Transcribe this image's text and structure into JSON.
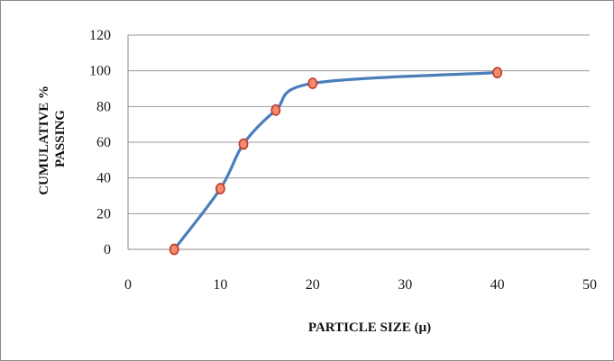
{
  "chart_data": {
    "type": "line",
    "title": "",
    "xlabel": "PARTICLE SIZE (µ)",
    "ylabel_lines": [
      "CUMULATIVE %",
      "PASSING"
    ],
    "xlim": [
      0,
      50
    ],
    "ylim": [
      0,
      120
    ],
    "xticks": [
      0,
      10,
      20,
      30,
      40,
      50
    ],
    "yticks": [
      0,
      20,
      40,
      60,
      80,
      100,
      120
    ],
    "grid": {
      "horizontal": true,
      "vertical": false
    },
    "legend": "none",
    "series": [
      {
        "smooth": true,
        "line_color": "#4a7ebb",
        "marker_fill": "#f28c6c",
        "marker_edge": "#c0392b",
        "points": [
          {
            "x": 5,
            "y": 0
          },
          {
            "x": 10,
            "y": 34
          },
          {
            "x": 12.5,
            "y": 59
          },
          {
            "x": 16,
            "y": 78
          },
          {
            "x": 20,
            "y": 93
          },
          {
            "x": 40,
            "y": 99
          }
        ]
      }
    ]
  }
}
